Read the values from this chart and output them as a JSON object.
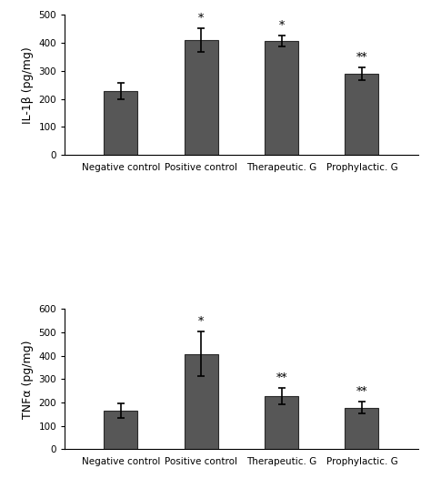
{
  "chart1": {
    "ylabel": "IL-1β (pg/mg)",
    "ylim": [
      0,
      500
    ],
    "yticks": [
      0,
      100,
      200,
      300,
      400,
      500
    ],
    "categories": [
      "Negative control",
      "Positive control",
      "Therapeutic. G",
      "Prophylactic. G"
    ],
    "values": [
      228,
      410,
      408,
      290
    ],
    "errors": [
      30,
      42,
      20,
      22
    ],
    "annotations": [
      "",
      "*",
      "*",
      "**"
    ]
  },
  "chart2": {
    "ylabel": "TNFα (pg/mg)",
    "ylim": [
      0,
      600
    ],
    "yticks": [
      0,
      100,
      200,
      300,
      400,
      500,
      600
    ],
    "categories": [
      "Negative control",
      "Positive control",
      "Therapeutic. G",
      "Prophylactic. G"
    ],
    "values": [
      165,
      408,
      228,
      178
    ],
    "errors": [
      30,
      95,
      35,
      25
    ],
    "annotations": [
      "",
      "*",
      "**",
      "**"
    ]
  },
  "bar_color": "#575757",
  "bar_edgecolor": "#2a2a2a",
  "bar_width": 0.42,
  "error_color": "black",
  "error_capsize": 3,
  "error_linewidth": 1.2,
  "annotation_fontsize": 9,
  "tick_fontsize": 7.5,
  "ylabel_fontsize": 9,
  "xlabel_fontsize": 7.5,
  "background_color": "#ffffff"
}
